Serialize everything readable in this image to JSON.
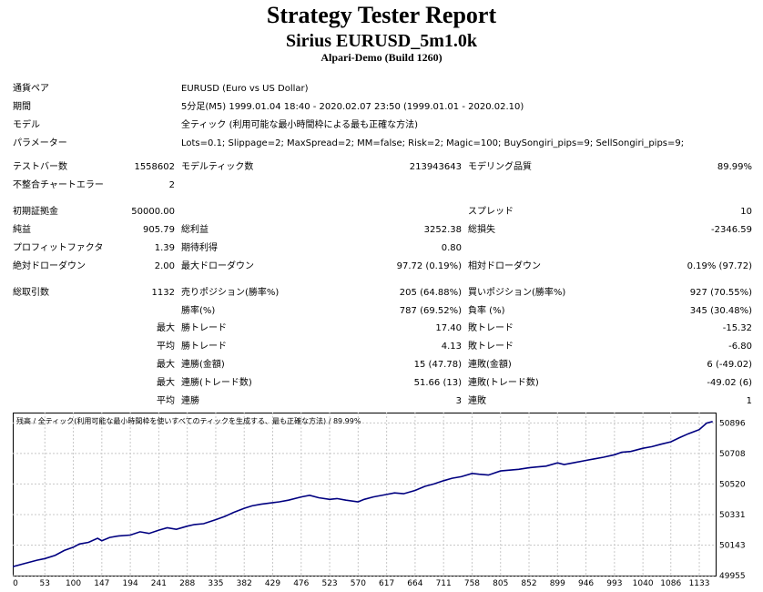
{
  "header": {
    "title": "Strategy Tester Report",
    "subtitle": "Sirius EURUSD_5m1.0k",
    "server": "Alpari-Demo (Build 1260)"
  },
  "info": [
    {
      "label": "通貨ペア",
      "value": "EURUSD (Euro vs US Dollar)"
    },
    {
      "label": "期間",
      "value": "5分足(M5) 1999.01.04 18:40 - 2020.02.07 23:50 (1999.01.01 - 2020.02.10)"
    },
    {
      "label": "モデル",
      "value": "全ティック (利用可能な最小時間枠による最も正確な方法)"
    },
    {
      "label": "パラメーター",
      "value": "Lots=0.1; Slippage=2; MaxSpread=2; MM=false; Risk=2; Magic=100; BuySongiri_pips=9; SellSongiri_pips=9;"
    }
  ],
  "stats": {
    "test_bars_label": "テストバー数",
    "test_bars": "1558602",
    "model_ticks_label": "モデルティック数",
    "model_ticks": "213943643",
    "model_quality_label": "モデリング品質",
    "model_quality": "89.99%",
    "mismatch_label": "不整合チャートエラー",
    "mismatch": "2",
    "deposit_label": "初期証拠金",
    "deposit": "50000.00",
    "spread_label": "スプレッド",
    "spread": "10",
    "net_profit_label": "純益",
    "net_profit": "905.79",
    "gross_profit_label": "総利益",
    "gross_profit": "3252.38",
    "gross_loss_label": "総損失",
    "gross_loss": "-2346.59",
    "profit_factor_label": "プロフィットファクタ",
    "profit_factor": "1.39",
    "expected_payoff_label": "期待利得",
    "expected_payoff": "0.80",
    "abs_dd_label": "絶対ドローダウン",
    "abs_dd": "2.00",
    "max_dd_label": "最大ドローダウン",
    "max_dd": "97.72 (0.19%)",
    "rel_dd_label": "相対ドローダウン",
    "rel_dd": "0.19% (97.72)",
    "total_trades_label": "総取引数",
    "total_trades": "1132",
    "short_label": "売りポジション(勝率%)",
    "short": "205 (64.88%)",
    "long_label": "買いポジション(勝率%)",
    "long": "927 (70.55%)",
    "win_label": "勝率(%)",
    "win": "787 (69.52%)",
    "loss_label": "負率 (%)",
    "loss": "345 (30.48%)",
    "max_label": "最大",
    "avg_label": "平均",
    "largest_win_label": "勝トレード",
    "largest_win": "17.40",
    "largest_loss_label": "敗トレード",
    "largest_loss": "-15.32",
    "avg_win_label": "勝トレード",
    "avg_win": "4.13",
    "avg_loss_label": "敗トレード",
    "avg_loss": "-6.80",
    "max_cons_wins_label": "連勝(金額)",
    "max_cons_wins": "15 (47.78)",
    "max_cons_losses_label": "連敗(金額)",
    "max_cons_losses": "6 (-49.02)",
    "max_cons_profit_label": "連勝(トレード数)",
    "max_cons_profit": "51.66 (13)",
    "max_cons_loss_label": "連敗(トレード数)",
    "max_cons_loss": "-49.02 (6)",
    "avg_cons_wins_label": "連勝",
    "avg_cons_wins": "3",
    "avg_cons_losses_label": "連敗",
    "avg_cons_losses": "1"
  },
  "chart_data": {
    "type": "line",
    "title": "残高 / 全ティック(利用可能な最小時間枠を使いすべてのティックを生成する、最も正確な方法) / 89.99%",
    "x_ticks": [
      0,
      53,
      100,
      147,
      194,
      241,
      288,
      335,
      382,
      429,
      476,
      523,
      570,
      617,
      664,
      711,
      758,
      805,
      852,
      899,
      946,
      993,
      1040,
      1086,
      1133
    ],
    "y_ticks": [
      50896,
      50708,
      50520,
      50331,
      50143,
      49955
    ],
    "xlim": [
      0,
      1160
    ],
    "ylim": [
      49955,
      50960
    ],
    "grid": true,
    "line_color": "#000080",
    "series": [
      {
        "x": [
          0,
          20,
          40,
          53,
          70,
          85,
          100,
          110,
          125,
          140,
          147,
          160,
          175,
          194,
          210,
          225,
          241,
          255,
          270,
          288,
          300,
          315,
          335,
          350,
          365,
          382,
          395,
          410,
          429,
          440,
          455,
          476,
          490,
          505,
          523,
          535,
          550,
          570,
          580,
          595,
          617,
          630,
          645,
          664,
          680,
          695,
          711,
          725,
          740,
          758,
          770,
          785,
          805,
          820,
          835,
          852,
          865,
          880,
          899,
          910,
          925,
          946,
          960,
          975,
          993,
          1005,
          1020,
          1040,
          1055,
          1070,
          1086,
          1100,
          1115,
          1133,
          1145,
          1155
        ],
        "y": [
          50010,
          50030,
          50050,
          50060,
          50080,
          50110,
          50130,
          50150,
          50160,
          50185,
          50170,
          50190,
          50200,
          50205,
          50225,
          50215,
          50235,
          50250,
          50240,
          50260,
          50270,
          50275,
          50300,
          50320,
          50345,
          50370,
          50385,
          50395,
          50405,
          50410,
          50420,
          50440,
          50450,
          50435,
          50425,
          50430,
          50420,
          50410,
          50425,
          50440,
          50455,
          50465,
          50460,
          50480,
          50505,
          50520,
          50540,
          50555,
          50565,
          50585,
          50580,
          50575,
          50600,
          50605,
          50610,
          50620,
          50625,
          50630,
          50650,
          50640,
          50650,
          50665,
          50675,
          50685,
          50700,
          50715,
          50720,
          50740,
          50750,
          50765,
          50780,
          50805,
          50830,
          50855,
          50895,
          50905
        ]
      }
    ]
  }
}
